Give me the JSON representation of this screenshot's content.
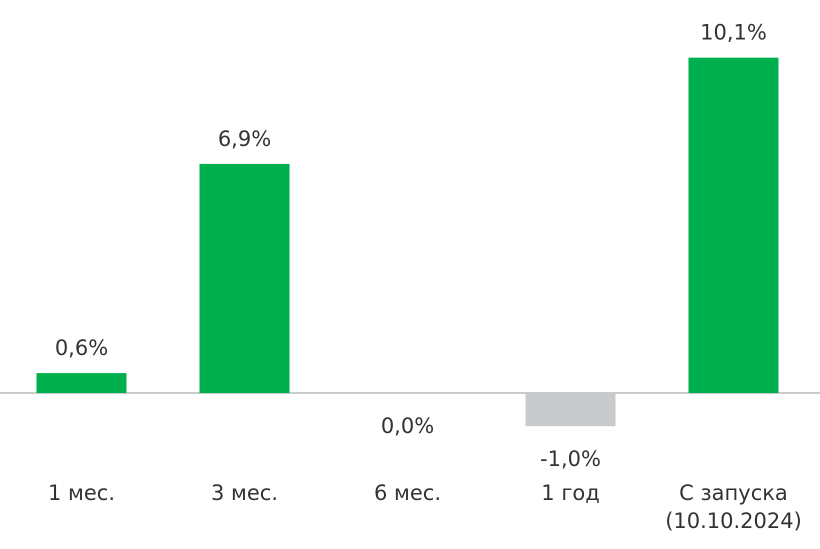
{
  "chart_data": {
    "type": "bar",
    "categories": [
      "1 мес.",
      "3 мес.",
      "6 мес.",
      "1 год",
      "С запуска\n(10.10.2024)"
    ],
    "values": [
      0.6,
      6.9,
      0.0,
      -1.0,
      10.1
    ],
    "value_labels": [
      "0,6%",
      "6,9%",
      "0,0%",
      "-1,0%",
      "10,1%"
    ],
    "colors": [
      "#00b04f",
      "#00b04f",
      "#c8cacb",
      "#c8cacb",
      "#00b04f"
    ],
    "ylim": [
      -2,
      11
    ]
  }
}
